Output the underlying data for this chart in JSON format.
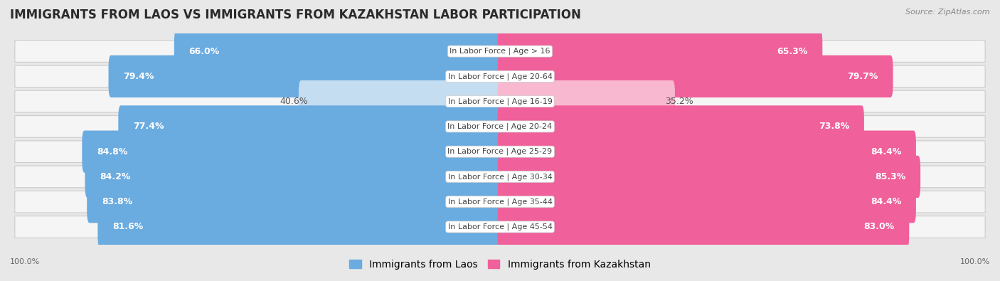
{
  "title": "IMMIGRANTS FROM LAOS VS IMMIGRANTS FROM KAZAKHSTAN LABOR PARTICIPATION",
  "source": "Source: ZipAtlas.com",
  "categories": [
    "In Labor Force | Age > 16",
    "In Labor Force | Age 20-64",
    "In Labor Force | Age 16-19",
    "In Labor Force | Age 20-24",
    "In Labor Force | Age 25-29",
    "In Labor Force | Age 30-34",
    "In Labor Force | Age 35-44",
    "In Labor Force | Age 45-54"
  ],
  "laos_values": [
    66.0,
    79.4,
    40.6,
    77.4,
    84.8,
    84.2,
    83.8,
    81.6
  ],
  "kazakhstan_values": [
    65.3,
    79.7,
    35.2,
    73.8,
    84.4,
    85.3,
    84.4,
    83.0
  ],
  "laos_color": "#6aabe0",
  "laos_color_light": "#c5ddf0",
  "kazakhstan_color": "#f0609a",
  "kazakhstan_color_light": "#f8b8d0",
  "background_color": "#e8e8e8",
  "row_bg_color": "#f5f5f5",
  "title_fontsize": 12,
  "label_fontsize": 9,
  "legend_fontsize": 10,
  "cat_fontsize": 8
}
